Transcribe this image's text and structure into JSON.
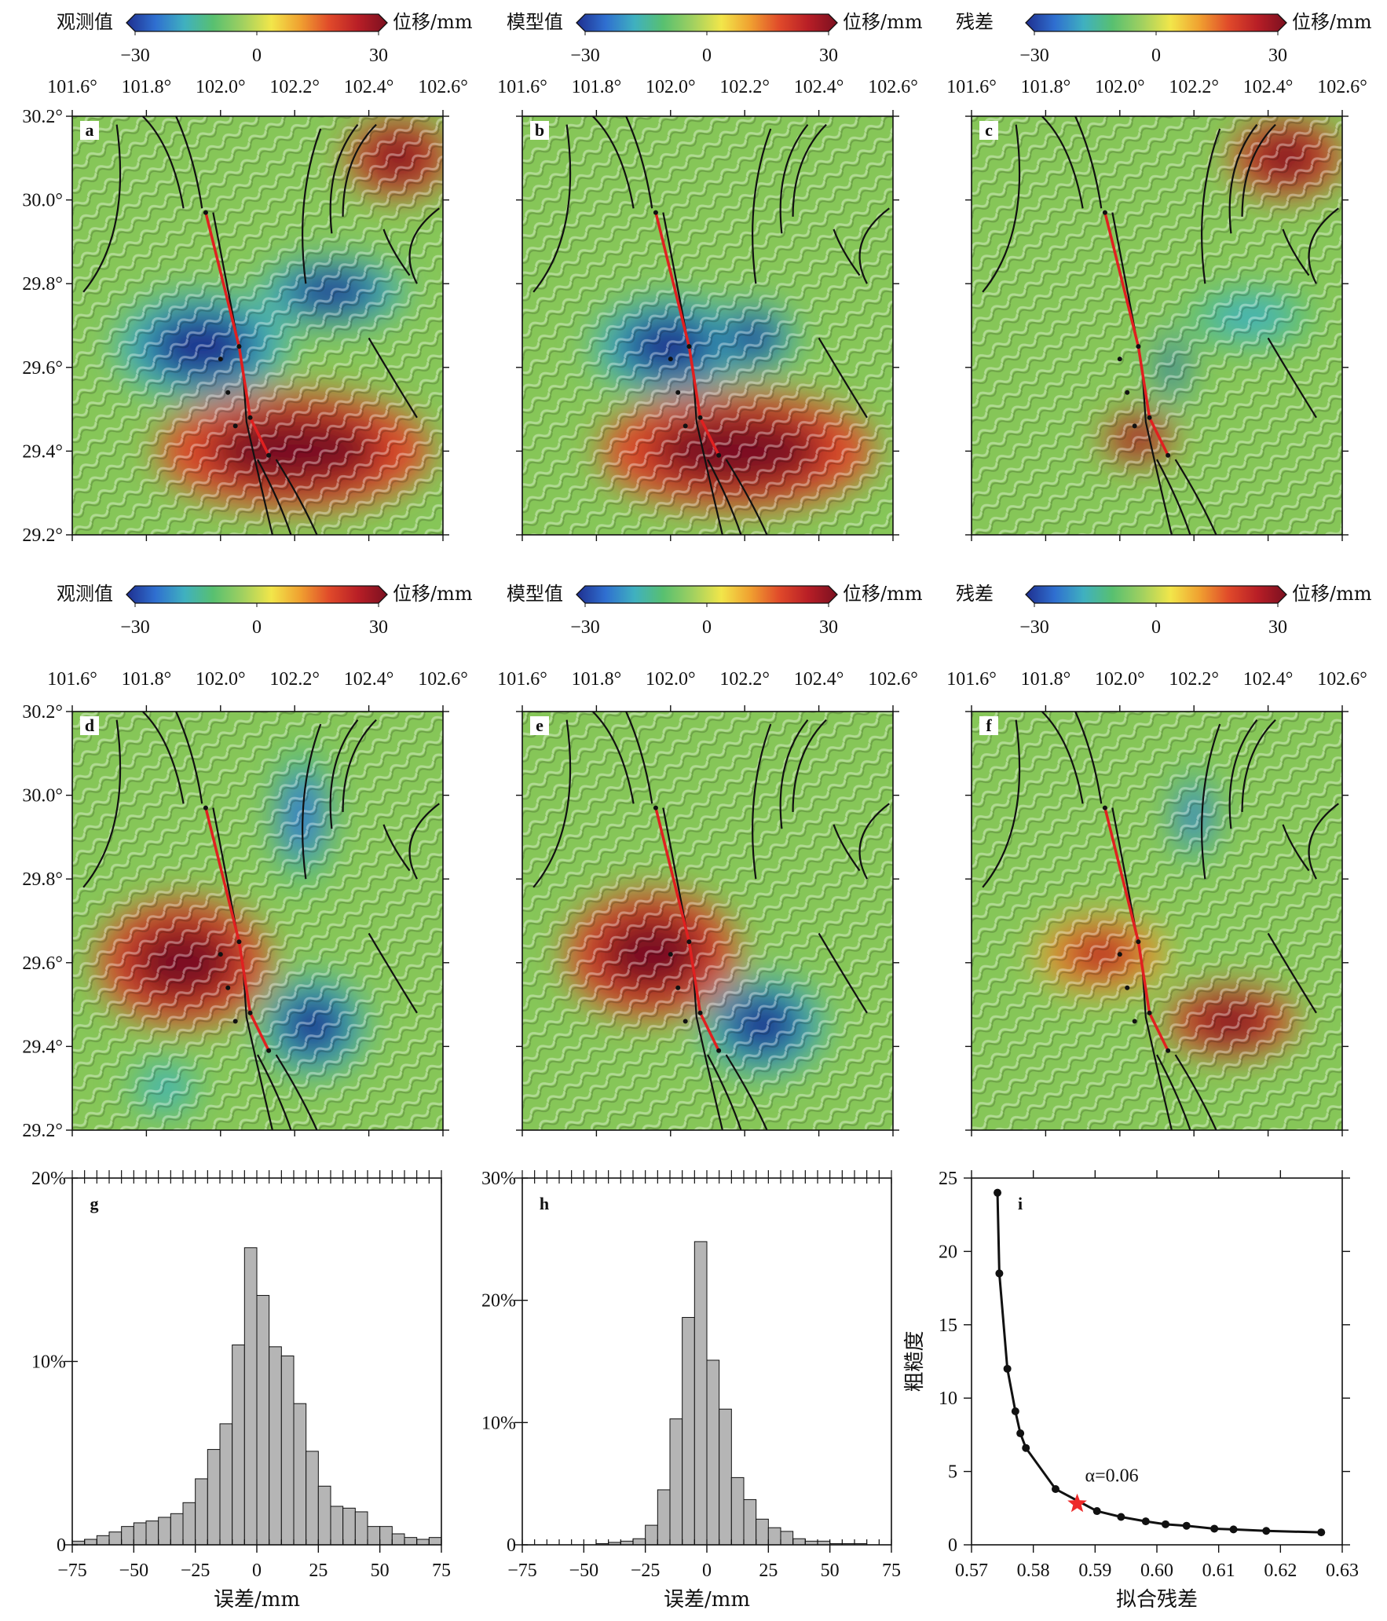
{
  "figure": {
    "colorbars": [
      {
        "label": "观测值",
        "unit": "位移/mm",
        "ticks": [
          "−30",
          "0",
          "30"
        ]
      },
      {
        "label": "模型值",
        "unit": "位移/mm",
        "ticks": [
          "−30",
          "0",
          "30"
        ]
      },
      {
        "label": "残差",
        "unit": "位移/mm",
        "ticks": [
          "−30",
          "0",
          "30"
        ]
      },
      {
        "label": "观测值",
        "unit": "位移/mm",
        "ticks": [
          "−30",
          "0",
          "30"
        ]
      },
      {
        "label": "模型值",
        "unit": "位移/mm",
        "ticks": [
          "−30",
          "0",
          "30"
        ]
      },
      {
        "label": "残差",
        "unit": "位移/mm",
        "ticks": [
          "−30",
          "0",
          "30"
        ]
      }
    ],
    "colormap": [
      "#1f2f8f",
      "#2f6fd0",
      "#3fb0c0",
      "#58c070",
      "#9fd060",
      "#f2e64a",
      "#f0a030",
      "#e04a2a",
      "#b81e26",
      "#7a1020"
    ],
    "lon_ticks": [
      "101.6°",
      "101.8°",
      "102.0°",
      "102.2°",
      "102.4°",
      "102.6°"
    ],
    "lat_ticks": [
      "30.2°",
      "30.0°",
      "29.8°",
      "29.6°",
      "29.4°",
      "29.2°"
    ],
    "lon_range": [
      101.6,
      102.6
    ],
    "lat_range": [
      29.2,
      30.2
    ],
    "map_panels": [
      {
        "letter": "a",
        "colorbar": "观测值",
        "lobes": [
          {
            "lon": 101.95,
            "lat": 29.65,
            "rx": 0.2,
            "ry": 0.11,
            "sign": -1
          },
          {
            "lon": 102.3,
            "lat": 29.78,
            "rx": 0.17,
            "ry": 0.07,
            "sign": -1
          },
          {
            "lon": 102.2,
            "lat": 29.4,
            "rx": 0.32,
            "ry": 0.12,
            "sign": 1
          },
          {
            "lon": 102.48,
            "lat": 30.1,
            "rx": 0.12,
            "ry": 0.08,
            "sign": 1
          }
        ]
      },
      {
        "letter": "b",
        "colorbar": "模型值",
        "lobes": [
          {
            "lon": 102.0,
            "lat": 29.65,
            "rx": 0.18,
            "ry": 0.1,
            "sign": -1
          },
          {
            "lon": 102.22,
            "lat": 29.67,
            "rx": 0.1,
            "ry": 0.07,
            "sign": -1
          },
          {
            "lon": 102.18,
            "lat": 29.4,
            "rx": 0.32,
            "ry": 0.12,
            "sign": 1
          }
        ]
      },
      {
        "letter": "c",
        "colorbar": "残差",
        "lobes": [
          {
            "lon": 102.45,
            "lat": 30.1,
            "rx": 0.13,
            "ry": 0.08,
            "sign": 1
          },
          {
            "lon": 102.05,
            "lat": 29.43,
            "rx": 0.08,
            "ry": 0.05,
            "sign": 1
          },
          {
            "lon": 102.14,
            "lat": 29.6,
            "rx": 0.03,
            "ry": 0.08,
            "sign": -1
          },
          {
            "lon": 102.35,
            "lat": 29.72,
            "rx": 0.15,
            "ry": 0.06,
            "sign": -0.5
          }
        ]
      },
      {
        "letter": "d",
        "colorbar": "观测值",
        "lobes": [
          {
            "lon": 101.9,
            "lat": 29.6,
            "rx": 0.2,
            "ry": 0.13,
            "sign": 1
          },
          {
            "lon": 102.25,
            "lat": 29.45,
            "rx": 0.12,
            "ry": 0.1,
            "sign": -1
          },
          {
            "lon": 102.22,
            "lat": 29.95,
            "rx": 0.07,
            "ry": 0.15,
            "sign": -0.7
          },
          {
            "lon": 101.85,
            "lat": 29.3,
            "rx": 0.08,
            "ry": 0.06,
            "sign": -0.6
          }
        ]
      },
      {
        "letter": "e",
        "colorbar": "模型值",
        "lobes": [
          {
            "lon": 101.95,
            "lat": 29.62,
            "rx": 0.2,
            "ry": 0.13,
            "sign": 1
          },
          {
            "lon": 102.25,
            "lat": 29.45,
            "rx": 0.14,
            "ry": 0.1,
            "sign": -1
          }
        ]
      },
      {
        "letter": "f",
        "colorbar": "残差",
        "lobes": [
          {
            "lon": 101.95,
            "lat": 29.62,
            "rx": 0.15,
            "ry": 0.08,
            "sign": 0.8
          },
          {
            "lon": 102.3,
            "lat": 29.46,
            "rx": 0.15,
            "ry": 0.07,
            "sign": 1
          },
          {
            "lon": 102.2,
            "lat": 29.95,
            "rx": 0.05,
            "ry": 0.1,
            "sign": -0.7
          }
        ]
      }
    ]
  },
  "chart_data": [
    {
      "type": "bar",
      "panel": "g",
      "xlabel": "误差/mm",
      "xlim": [
        -75,
        75
      ],
      "ylim": [
        0,
        20
      ],
      "x_ticks": [
        "−75",
        "−50",
        "−25",
        "0",
        "25",
        "50",
        "75"
      ],
      "y_ticks": [
        "0",
        "10%",
        "20%"
      ],
      "bin_width": 5,
      "bin_starts": [
        -75,
        -70,
        -65,
        -60,
        -55,
        -50,
        -45,
        -40,
        -35,
        -30,
        -25,
        -20,
        -15,
        -10,
        -5,
        0,
        5,
        10,
        15,
        20,
        25,
        30,
        35,
        40,
        45,
        50,
        55,
        60,
        65,
        70
      ],
      "values": [
        0.2,
        0.3,
        0.5,
        0.7,
        1.0,
        1.2,
        1.3,
        1.5,
        1.7,
        2.3,
        3.6,
        5.2,
        6.6,
        10.9,
        16.2,
        13.6,
        10.8,
        10.3,
        7.7,
        5.1,
        3.2,
        2.1,
        2.0,
        1.8,
        1.0,
        1.0,
        0.6,
        0.4,
        0.3,
        0.4
      ]
    },
    {
      "type": "bar",
      "panel": "h",
      "xlabel": "误差/mm",
      "xlim": [
        -75,
        75
      ],
      "ylim": [
        0,
        30
      ],
      "x_ticks": [
        "−75",
        "−50",
        "−25",
        "0",
        "25",
        "50",
        "75"
      ],
      "y_ticks": [
        "0",
        "10%",
        "20%",
        "30%"
      ],
      "bin_width": 5,
      "bin_starts": [
        -75,
        -70,
        -65,
        -60,
        -55,
        -50,
        -45,
        -40,
        -35,
        -30,
        -25,
        -20,
        -15,
        -10,
        -5,
        0,
        5,
        10,
        15,
        20,
        25,
        30,
        35,
        40,
        45,
        50,
        55,
        60,
        65,
        70
      ],
      "values": [
        0,
        0,
        0,
        0,
        0,
        0,
        0.1,
        0.2,
        0.3,
        0.5,
        1.6,
        4.5,
        10.3,
        18.6,
        24.8,
        15.1,
        11.1,
        5.5,
        3.7,
        2.1,
        1.4,
        1.1,
        0.5,
        0.3,
        0.3,
        0.1,
        0.1,
        0.1,
        0,
        0
      ]
    },
    {
      "type": "line",
      "panel": "i",
      "xlabel": "拟合残差",
      "ylabel": "粗糙度",
      "xlim": [
        0.57,
        0.63
      ],
      "ylim": [
        0,
        25
      ],
      "x_ticks": [
        "0.57",
        "0.58",
        "0.59",
        "0.60",
        "0.61",
        "0.62",
        "0.63"
      ],
      "y_ticks": [
        "0",
        "5",
        "10",
        "15",
        "20",
        "25"
      ],
      "x": [
        0.5742,
        0.5745,
        0.5758,
        0.5771,
        0.5779,
        0.5788,
        0.5836,
        0.5903,
        0.5942,
        0.5982,
        0.6014,
        0.6048,
        0.6093,
        0.6124,
        0.6177,
        0.6266
      ],
      "y": [
        24.0,
        18.5,
        12.0,
        9.1,
        7.6,
        6.6,
        3.8,
        2.3,
        1.9,
        1.6,
        1.4,
        1.3,
        1.1,
        1.05,
        0.95,
        0.85
      ],
      "highlight": {
        "x": 0.5871,
        "y": 2.8,
        "label": "α=0.06"
      }
    }
  ]
}
